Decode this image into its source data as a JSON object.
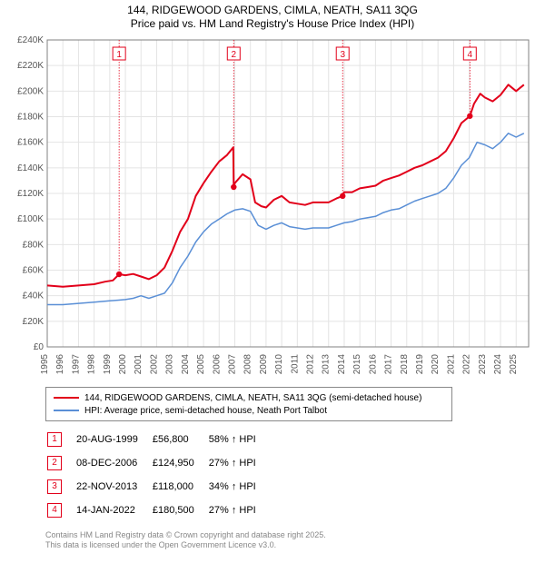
{
  "title_line1": "144, RIDGEWOOD GARDENS, CIMLA, NEATH, SA11 3QG",
  "title_line2": "Price paid vs. HM Land Registry's House Price Index (HPI)",
  "chart": {
    "type": "line",
    "background_color": "#ffffff",
    "grid_color": "#e4e4e4",
    "axis_color": "#808080",
    "xlim": [
      1995,
      2025.8
    ],
    "ylim": [
      0,
      240000
    ],
    "ytick_step": 20000,
    "yticks": [
      "£0",
      "£20K",
      "£40K",
      "£60K",
      "£80K",
      "£100K",
      "£120K",
      "£140K",
      "£160K",
      "£180K",
      "£200K",
      "£220K",
      "£240K"
    ],
    "xticks": [
      1995,
      1996,
      1997,
      1998,
      1999,
      2000,
      2001,
      2002,
      2003,
      2004,
      2005,
      2006,
      2007,
      2008,
      2009,
      2010,
      2011,
      2012,
      2013,
      2014,
      2015,
      2016,
      2017,
      2018,
      2019,
      2020,
      2021,
      2022,
      2023,
      2024,
      2025
    ],
    "series": [
      {
        "name": "property",
        "label": "144, RIDGEWOOD GARDENS, CIMLA, NEATH, SA11 3QG (semi-detached house)",
        "color": "#e2001a",
        "line_width": 2,
        "data": [
          [
            1995,
            48000
          ],
          [
            1996,
            47000
          ],
          [
            1997,
            48000
          ],
          [
            1998,
            49000
          ],
          [
            1998.7,
            51000
          ],
          [
            1999.2,
            52000
          ],
          [
            1999.6,
            56800
          ],
          [
            2000,
            56000
          ],
          [
            2000.5,
            57000
          ],
          [
            2001,
            55000
          ],
          [
            2001.5,
            53000
          ],
          [
            2002,
            56000
          ],
          [
            2002.5,
            62000
          ],
          [
            2003,
            75000
          ],
          [
            2003.5,
            90000
          ],
          [
            2004,
            100000
          ],
          [
            2004.5,
            118000
          ],
          [
            2005,
            128000
          ],
          [
            2005.5,
            137000
          ],
          [
            2006,
            145000
          ],
          [
            2006.5,
            150000
          ],
          [
            2006.9,
            156000
          ],
          [
            2006.93,
            124950
          ],
          [
            2007,
            128000
          ],
          [
            2007.5,
            135000
          ],
          [
            2008,
            131000
          ],
          [
            2008.3,
            113000
          ],
          [
            2008.7,
            110000
          ],
          [
            2009,
            109000
          ],
          [
            2009.5,
            115000
          ],
          [
            2010,
            118000
          ],
          [
            2010.5,
            113000
          ],
          [
            2011,
            112000
          ],
          [
            2011.5,
            111000
          ],
          [
            2012,
            113000
          ],
          [
            2012.5,
            113000
          ],
          [
            2013,
            113000
          ],
          [
            2013.5,
            116000
          ],
          [
            2013.9,
            118000
          ],
          [
            2014,
            121000
          ],
          [
            2014.5,
            121000
          ],
          [
            2015,
            124000
          ],
          [
            2015.5,
            125000
          ],
          [
            2016,
            126000
          ],
          [
            2016.5,
            130000
          ],
          [
            2017,
            132000
          ],
          [
            2017.5,
            134000
          ],
          [
            2018,
            137000
          ],
          [
            2018.5,
            140000
          ],
          [
            2019,
            142000
          ],
          [
            2019.5,
            145000
          ],
          [
            2020,
            148000
          ],
          [
            2020.5,
            153000
          ],
          [
            2021,
            163000
          ],
          [
            2021.5,
            175000
          ],
          [
            2022.04,
            180500
          ],
          [
            2022.3,
            190000
          ],
          [
            2022.7,
            198000
          ],
          [
            2023,
            195000
          ],
          [
            2023.5,
            192000
          ],
          [
            2024,
            197000
          ],
          [
            2024.5,
            205000
          ],
          [
            2025,
            200000
          ],
          [
            2025.5,
            205000
          ]
        ]
      },
      {
        "name": "hpi",
        "label": "HPI: Average price, semi-detached house, Neath Port Talbot",
        "color": "#5a8fd6",
        "line_width": 1.5,
        "data": [
          [
            1995,
            33000
          ],
          [
            1996,
            33000
          ],
          [
            1997,
            34000
          ],
          [
            1998,
            35000
          ],
          [
            1999,
            36000
          ],
          [
            1999.5,
            36500
          ],
          [
            2000,
            37000
          ],
          [
            2000.5,
            38000
          ],
          [
            2001,
            40000
          ],
          [
            2001.5,
            38000
          ],
          [
            2002,
            40000
          ],
          [
            2002.5,
            42000
          ],
          [
            2003,
            50000
          ],
          [
            2003.5,
            62000
          ],
          [
            2004,
            71000
          ],
          [
            2004.5,
            82000
          ],
          [
            2005,
            90000
          ],
          [
            2005.5,
            96000
          ],
          [
            2006,
            100000
          ],
          [
            2006.5,
            104000
          ],
          [
            2007,
            107000
          ],
          [
            2007.5,
            108000
          ],
          [
            2008,
            106000
          ],
          [
            2008.5,
            95000
          ],
          [
            2009,
            92000
          ],
          [
            2009.5,
            95000
          ],
          [
            2010,
            97000
          ],
          [
            2010.5,
            94000
          ],
          [
            2011,
            93000
          ],
          [
            2011.5,
            92000
          ],
          [
            2012,
            93000
          ],
          [
            2012.5,
            93000
          ],
          [
            2013,
            93000
          ],
          [
            2013.5,
            95000
          ],
          [
            2014,
            97000
          ],
          [
            2014.5,
            98000
          ],
          [
            2015,
            100000
          ],
          [
            2015.5,
            101000
          ],
          [
            2016,
            102000
          ],
          [
            2016.5,
            105000
          ],
          [
            2017,
            107000
          ],
          [
            2017.5,
            108000
          ],
          [
            2018,
            111000
          ],
          [
            2018.5,
            114000
          ],
          [
            2019,
            116000
          ],
          [
            2019.5,
            118000
          ],
          [
            2020,
            120000
          ],
          [
            2020.5,
            124000
          ],
          [
            2021,
            132000
          ],
          [
            2021.5,
            142000
          ],
          [
            2022,
            148000
          ],
          [
            2022.5,
            160000
          ],
          [
            2023,
            158000
          ],
          [
            2023.5,
            155000
          ],
          [
            2024,
            160000
          ],
          [
            2024.5,
            167000
          ],
          [
            2025,
            164000
          ],
          [
            2025.5,
            167000
          ]
        ]
      }
    ],
    "sale_markers": [
      {
        "n": 1,
        "x": 1999.6,
        "y": 56800,
        "marker_y_label": 72
      },
      {
        "n": 2,
        "x": 2006.93,
        "y": 124950,
        "marker_y_label": 72
      },
      {
        "n": 3,
        "x": 2013.9,
        "y": 118000,
        "marker_y_label": 72
      },
      {
        "n": 4,
        "x": 2022.04,
        "y": 180500,
        "marker_y_label": 72
      }
    ]
  },
  "legend": {
    "items": [
      {
        "color": "#e2001a",
        "label": "144, RIDGEWOOD GARDENS, CIMLA, NEATH, SA11 3QG (semi-detached house)"
      },
      {
        "color": "#5a8fd6",
        "label": "HPI: Average price, semi-detached house, Neath Port Talbot"
      }
    ]
  },
  "sales_table": {
    "marker_color": "#e2001a",
    "rows": [
      {
        "n": "1",
        "date": "20-AUG-1999",
        "price": "£56,800",
        "delta": "58% ↑ HPI"
      },
      {
        "n": "2",
        "date": "08-DEC-2006",
        "price": "£124,950",
        "delta": "27% ↑ HPI"
      },
      {
        "n": "3",
        "date": "22-NOV-2013",
        "price": "£118,000",
        "delta": "34% ↑ HPI"
      },
      {
        "n": "4",
        "date": "14-JAN-2022",
        "price": "£180,500",
        "delta": "27% ↑ HPI"
      }
    ]
  },
  "footer": {
    "line1": "Contains HM Land Registry data © Crown copyright and database right 2025.",
    "line2": "This data is licensed under the Open Government Licence v3.0."
  }
}
